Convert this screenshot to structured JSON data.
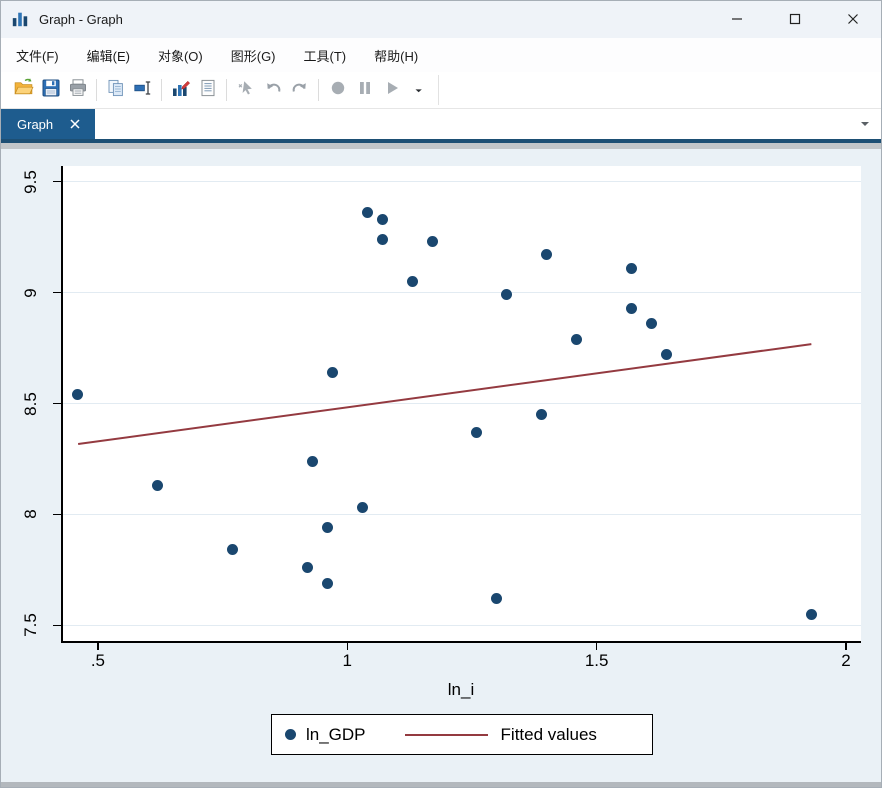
{
  "window": {
    "title": "Graph - Graph"
  },
  "window_controls": {
    "minimize": "minimize",
    "maximize": "maximize",
    "close": "close"
  },
  "menu": {
    "items": [
      {
        "label": "文件(F)"
      },
      {
        "label": "编辑(E)"
      },
      {
        "label": "对象(O)"
      },
      {
        "label": "图形(G)"
      },
      {
        "label": "工具(T)"
      },
      {
        "label": "帮助(H)"
      }
    ]
  },
  "toolbar": {
    "groups": [
      {
        "buttons": [
          {
            "icon": "open-icon",
            "enabled": true
          },
          {
            "icon": "save-icon",
            "enabled": true
          },
          {
            "icon": "print-icon",
            "enabled": true
          }
        ]
      },
      {
        "buttons": [
          {
            "icon": "copy-icon",
            "enabled": true
          },
          {
            "icon": "rename-icon",
            "enabled": true
          }
        ]
      },
      {
        "buttons": [
          {
            "icon": "graph-editor-icon",
            "enabled": true
          },
          {
            "icon": "log-icon",
            "enabled": true
          }
        ]
      },
      {
        "buttons": [
          {
            "icon": "deselect-pointer-icon",
            "enabled": false
          },
          {
            "icon": "undo-icon",
            "enabled": false
          },
          {
            "icon": "redo-icon",
            "enabled": false
          }
        ]
      },
      {
        "buttons": [
          {
            "icon": "record-icon",
            "enabled": false
          },
          {
            "icon": "pause-icon",
            "enabled": false
          },
          {
            "icon": "play-icon",
            "enabled": false
          },
          {
            "icon": "more-dropdown-icon",
            "enabled": true
          }
        ]
      }
    ]
  },
  "tab_bar": {
    "tabs": [
      {
        "label": "Graph",
        "active": true
      }
    ]
  },
  "colors": {
    "tab_blue": "#1e5c8e",
    "graph_background": "#eaf1f6",
    "plot_background": "#ffffff",
    "scatter_navy": "#1a476f",
    "fit_maroon": "#943a40",
    "gridline": "#e2ebf2"
  },
  "chart_data": {
    "type": "scatter",
    "title": "",
    "xlabel": "ln_i",
    "ylabel": "",
    "xlim": [
      0.43,
      2.03
    ],
    "ylim": [
      7.43,
      9.57
    ],
    "grid": true,
    "legend_position": "bottom",
    "x_ticks": {
      "values": [
        0.5,
        1,
        1.5,
        2
      ],
      "labels": [
        ".5",
        "1",
        "1.5",
        "2"
      ]
    },
    "y_ticks": {
      "values": [
        9.5,
        9,
        8.5,
        8,
        7.5
      ],
      "labels": [
        "9.5",
        "9",
        "8.5",
        "8",
        "7.5"
      ]
    },
    "series": [
      {
        "name": "ln_GDP",
        "type": "scatter",
        "color": "#1a476f",
        "points": [
          [
            0.46,
            8.54
          ],
          [
            0.62,
            8.13
          ],
          [
            0.77,
            7.84
          ],
          [
            0.92,
            7.76
          ],
          [
            0.93,
            8.24
          ],
          [
            0.96,
            7.94
          ],
          [
            0.96,
            7.69
          ],
          [
            0.97,
            8.64
          ],
          [
            1.03,
            8.03
          ],
          [
            1.04,
            9.36
          ],
          [
            1.07,
            9.33
          ],
          [
            1.07,
            9.24
          ],
          [
            1.13,
            9.05
          ],
          [
            1.17,
            9.23
          ],
          [
            1.26,
            8.37
          ],
          [
            1.3,
            7.62
          ],
          [
            1.32,
            8.99
          ],
          [
            1.39,
            8.45
          ],
          [
            1.4,
            9.17
          ],
          [
            1.46,
            8.79
          ],
          [
            1.57,
            9.11
          ],
          [
            1.57,
            8.93
          ],
          [
            1.61,
            8.86
          ],
          [
            1.64,
            8.72
          ],
          [
            1.93,
            7.55
          ]
        ]
      },
      {
        "name": "Fitted values",
        "type": "line",
        "color": "#943a40",
        "x": [
          0.46,
          1.93
        ],
        "y": [
          8.32,
          8.77
        ]
      }
    ]
  }
}
